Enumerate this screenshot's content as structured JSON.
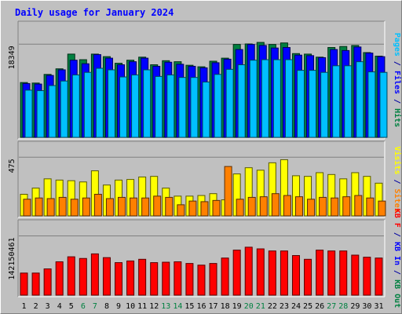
{
  "chart_data": {
    "title": "Daily usage for January 2024",
    "type": "bar",
    "days": [
      "1",
      "2",
      "3",
      "4",
      "5",
      "6",
      "7",
      "8",
      "9",
      "10",
      "11",
      "12",
      "13",
      "14",
      "15",
      "16",
      "17",
      "18",
      "19",
      "20",
      "21",
      "22",
      "23",
      "24",
      "25",
      "26",
      "27",
      "28",
      "29",
      "30",
      "31"
    ],
    "weekend_days": [
      "6",
      "7",
      "13",
      "14",
      "20",
      "21",
      "27",
      "28"
    ],
    "panels": [
      {
        "key": "hits",
        "ylabel_max": "18349",
        "ymax": 18349,
        "right_label": [
          {
            "text": "Pages",
            "color": "#00c0ff"
          },
          {
            "text": " / ",
            "color": "#0000a0"
          },
          {
            "text": "Files",
            "color": "#0000ff"
          },
          {
            "text": " / ",
            "color": "#0000a0"
          },
          {
            "text": "Hits",
            "color": "#008040"
          }
        ],
        "series": [
          {
            "name": "Hits",
            "color": "#008040",
            "values": [
              10800,
              10700,
              12400,
              13500,
              16400,
              15300,
              16400,
              15900,
              14600,
              15200,
              15800,
              14300,
              15100,
              14900,
              14200,
              13900,
              15000,
              15600,
              18300,
              18400,
              18700,
              18300,
              18600,
              16500,
              16400,
              15800,
              17700,
              17900,
              18100,
              16700,
              16000
            ]
          },
          {
            "name": "Files",
            "color": "#0000ff",
            "values": [
              10600,
              10500,
              12200,
              13300,
              15200,
              14500,
              16300,
              15600,
              14300,
              14900,
              15600,
              14000,
              14800,
              14400,
              14000,
              13700,
              14700,
              15400,
              17300,
              18300,
              18100,
              17600,
              17700,
              16200,
              16100,
              15700,
              17300,
              17100,
              17800,
              16600,
              15900
            ]
          },
          {
            "name": "Pages",
            "color": "#00c0ff",
            "values": [
              9300,
              9200,
              10200,
              11100,
              12300,
              12800,
              13600,
              13300,
              11900,
              12300,
              13300,
              12000,
              12300,
              11800,
              11800,
              10900,
              12400,
              13400,
              14300,
              15200,
              15300,
              15300,
              15300,
              13200,
              13200,
              12800,
              14100,
              14100,
              14900,
              12900,
              12800
            ]
          }
        ]
      },
      {
        "key": "visits",
        "ylabel_max": "475",
        "ymax": 475,
        "right_label": [
          {
            "text": "Visits",
            "color": "#ffff00"
          },
          {
            "text": " / ",
            "color": "#0000a0"
          },
          {
            "text": "Sites",
            "color": "#ff8000"
          }
        ],
        "series": [
          {
            "name": "Visits",
            "color": "#ffff00",
            "values": [
              175,
              225,
              300,
              290,
              285,
              275,
              365,
              250,
              290,
              295,
              315,
              320,
              225,
              160,
              160,
              165,
              180,
              130,
              340,
              390,
              370,
              430,
              455,
              325,
              320,
              350,
              335,
              300,
              350,
              320,
              265
            ]
          },
          {
            "name": "Sites",
            "color": "#ff8000",
            "values": [
              135,
              145,
              140,
              150,
              135,
              145,
              175,
              140,
              150,
              145,
              145,
              160,
              150,
              90,
              120,
              115,
              125,
              400,
              135,
              150,
              155,
              180,
              165,
              155,
              135,
              150,
              145,
              155,
              165,
              145,
              120
            ]
          }
        ]
      },
      {
        "key": "kbytes",
        "ylabel_max": "142150461",
        "ymax": 142150461,
        "right_label": [
          {
            "text": "KB F",
            "color": "#ff0000"
          },
          {
            "text": " / ",
            "color": "#0000a0"
          },
          {
            "text": "KB In",
            "color": "#0000ff"
          },
          {
            "text": " / ",
            "color": "#0000a0"
          },
          {
            "text": "KB Out",
            "color": "#008040"
          }
        ],
        "series": [
          {
            "name": "KB F",
            "color": "#ff0000",
            "values": [
              53000000,
              53000000,
              63000000,
              80000000,
              92000000,
              88000000,
              99000000,
              90000000,
              78000000,
              82000000,
              86000000,
              78000000,
              79000000,
              80000000,
              76000000,
              72000000,
              76000000,
              89000000,
              108000000,
              115000000,
              111000000,
              106000000,
              106000000,
              95000000,
              86000000,
              108000000,
              106000000,
              106000000,
              96000000,
              91000000,
              89000000
            ]
          }
        ]
      }
    ]
  }
}
